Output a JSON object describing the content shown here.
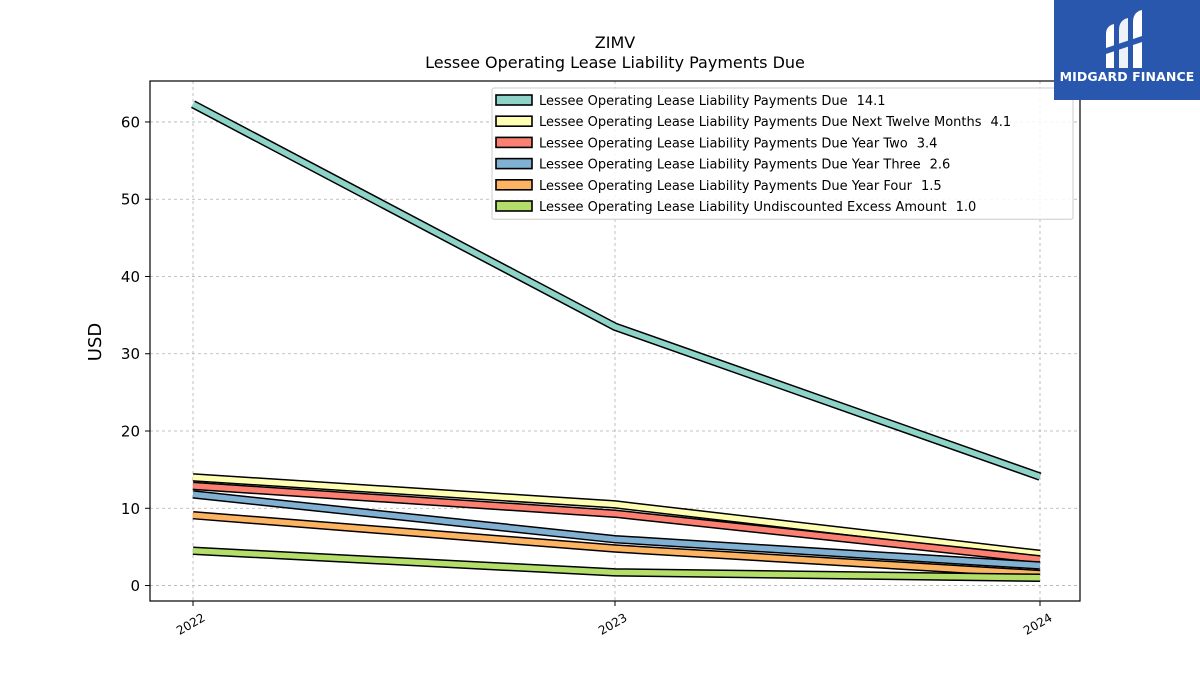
{
  "chart_data": {
    "type": "line",
    "title": "ZIMV",
    "subtitle": "Lessee Operating Lease Liability Payments Due",
    "xlabel": "",
    "ylabel": "USD",
    "categories": [
      "2022",
      "2023",
      "2024"
    ],
    "x_tick_labels": [
      "2022",
      "2023",
      "2024"
    ],
    "y_ticks": [
      0,
      10,
      20,
      30,
      40,
      50,
      60
    ],
    "y_tick_labels": [
      "0",
      "10",
      "20",
      "30",
      "40",
      "50",
      "60"
    ],
    "ylim": [
      -2,
      65.3
    ],
    "grid": true,
    "legend_position": "top-right",
    "series": [
      {
        "name": "Lessee Operating Lease Liability Payments Due",
        "legend_value": "14.1",
        "color": "#8dd3c7",
        "values": [
          62.3,
          33.5,
          14.1
        ]
      },
      {
        "name": "Lessee Operating Lease Liability Payments Due Next Twelve Months",
        "legend_value": "4.1",
        "color": "#ffffb3",
        "values": [
          14.0,
          10.5,
          4.1
        ]
      },
      {
        "name": "Lessee Operating Lease Liability Payments Due Year Two",
        "legend_value": "3.4",
        "color": "#fb8072",
        "values": [
          12.9,
          9.3,
          3.4
        ]
      },
      {
        "name": "Lessee Operating Lease Liability Payments Due Year Three",
        "legend_value": "2.6",
        "color": "#80b1d3",
        "values": [
          11.8,
          6.0,
          2.6
        ]
      },
      {
        "name": "Lessee Operating Lease Liability Payments Due Year Four",
        "legend_value": "1.5",
        "color": "#fdb462",
        "values": [
          9.1,
          4.8,
          1.5
        ]
      },
      {
        "name": "Lessee Operating Lease Liability Undiscounted Excess Amount",
        "legend_value": "1.0",
        "color": "#b3de69",
        "values": [
          4.5,
          1.7,
          1.0
        ]
      }
    ]
  },
  "logo": {
    "text": "MIDGARD FINANCE",
    "background": "#2a57ae"
  }
}
